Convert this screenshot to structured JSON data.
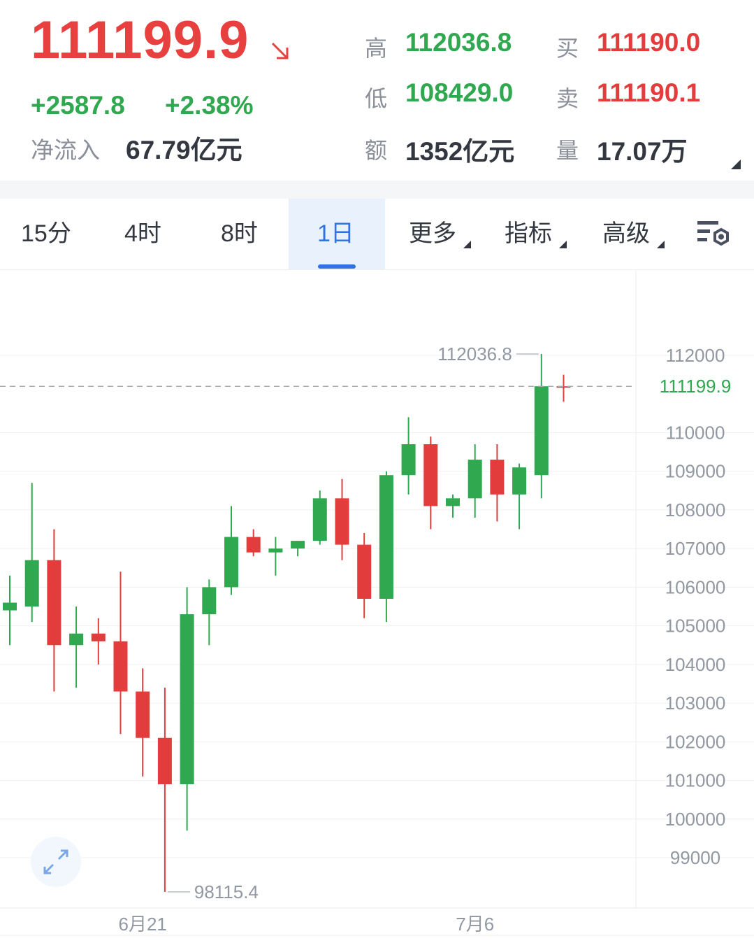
{
  "quote": {
    "price": "111199.9",
    "change": "+2587.8",
    "change_pct": "+2.38%",
    "netflow_label": "净流入",
    "netflow_value": "67.79亿元",
    "high_label": "高",
    "high_value": "112036.8",
    "low_label": "低",
    "low_value": "108429.0",
    "amount_label": "额",
    "amount_value": "1352亿元",
    "buy_label": "买",
    "buy_value": "111190.0",
    "sell_label": "卖",
    "sell_value": "111190.1",
    "volume_label": "量",
    "volume_value": "17.07万",
    "colors": {
      "up": "#2fa84f",
      "down": "#e23c3c",
      "accent": "#2f74e0"
    }
  },
  "tabs": [
    {
      "label": "15分"
    },
    {
      "label": "4时"
    },
    {
      "label": "8时"
    },
    {
      "label": "1日",
      "active": true
    },
    {
      "label": "更多"
    },
    {
      "label": "指标"
    },
    {
      "label": "高级"
    }
  ],
  "settings_icon": "chart-settings-icon",
  "expand_icon": "expand-arrows-icon",
  "chart_data": {
    "type": "candlestick",
    "y_ticks": [
      112000,
      110000,
      109000,
      108000,
      107000,
      106000,
      105000,
      104000,
      103000,
      102000,
      101000,
      100000,
      99000
    ],
    "y_tick_labels": [
      "112000",
      "110000",
      "109000",
      "108000",
      "107000",
      "106000",
      "105000",
      "104000",
      "103000",
      "102000",
      "101000",
      "100000",
      "99000"
    ],
    "ylim": [
      98000,
      113500
    ],
    "x_tick_labels": [
      {
        "label": "6月21",
        "candle_index": 6
      },
      {
        "label": "7月6",
        "candle_index": 21
      }
    ],
    "current_price": 111199.9,
    "current_price_label": "111199.9",
    "max_annotation": {
      "label": "112036.8",
      "value": 112036.8,
      "candle_index": 24
    },
    "min_annotation": {
      "label": "98115.4",
      "value": 98115.4,
      "candle_index": 7
    },
    "colors": {
      "up": "#2fa84f",
      "down": "#e23c3c"
    },
    "candles": [
      {
        "open": 105400,
        "high": 106300,
        "low": 104500,
        "close": 105600
      },
      {
        "open": 105500,
        "high": 108700,
        "low": 105100,
        "close": 106700
      },
      {
        "open": 106700,
        "high": 107500,
        "low": 103300,
        "close": 104500
      },
      {
        "open": 104500,
        "high": 105500,
        "low": 103400,
        "close": 104800
      },
      {
        "open": 104800,
        "high": 105200,
        "low": 104000,
        "close": 104600
      },
      {
        "open": 104600,
        "high": 106400,
        "low": 102200,
        "close": 103300
      },
      {
        "open": 103300,
        "high": 103900,
        "low": 101100,
        "close": 102100
      },
      {
        "open": 102100,
        "high": 103400,
        "low": 98115.4,
        "close": 100900
      },
      {
        "open": 100900,
        "high": 106000,
        "low": 99700,
        "close": 105300
      },
      {
        "open": 105300,
        "high": 106200,
        "low": 104500,
        "close": 106000
      },
      {
        "open": 106000,
        "high": 108100,
        "low": 105800,
        "close": 107300
      },
      {
        "open": 107300,
        "high": 107500,
        "low": 106800,
        "close": 106900
      },
      {
        "open": 106900,
        "high": 107300,
        "low": 106300,
        "close": 107000
      },
      {
        "open": 107000,
        "high": 107200,
        "low": 106800,
        "close": 107200
      },
      {
        "open": 107200,
        "high": 108500,
        "low": 107100,
        "close": 108300
      },
      {
        "open": 108300,
        "high": 108800,
        "low": 106700,
        "close": 107100
      },
      {
        "open": 107100,
        "high": 107400,
        "low": 105200,
        "close": 105700
      },
      {
        "open": 105700,
        "high": 109000,
        "low": 105100,
        "close": 108900
      },
      {
        "open": 108900,
        "high": 110400,
        "low": 108400,
        "close": 109700
      },
      {
        "open": 109700,
        "high": 109900,
        "low": 107500,
        "close": 108100
      },
      {
        "open": 108100,
        "high": 108400,
        "low": 107800,
        "close": 108300
      },
      {
        "open": 108300,
        "high": 109700,
        "low": 107800,
        "close": 109300
      },
      {
        "open": 109300,
        "high": 109700,
        "low": 107700,
        "close": 108400
      },
      {
        "open": 108400,
        "high": 109200,
        "low": 107500,
        "close": 109100
      },
      {
        "open": 108900,
        "high": 112036.8,
        "low": 108300,
        "close": 111200
      },
      {
        "open": 111200,
        "high": 111500,
        "low": 110800,
        "close": 111199.9
      }
    ]
  }
}
